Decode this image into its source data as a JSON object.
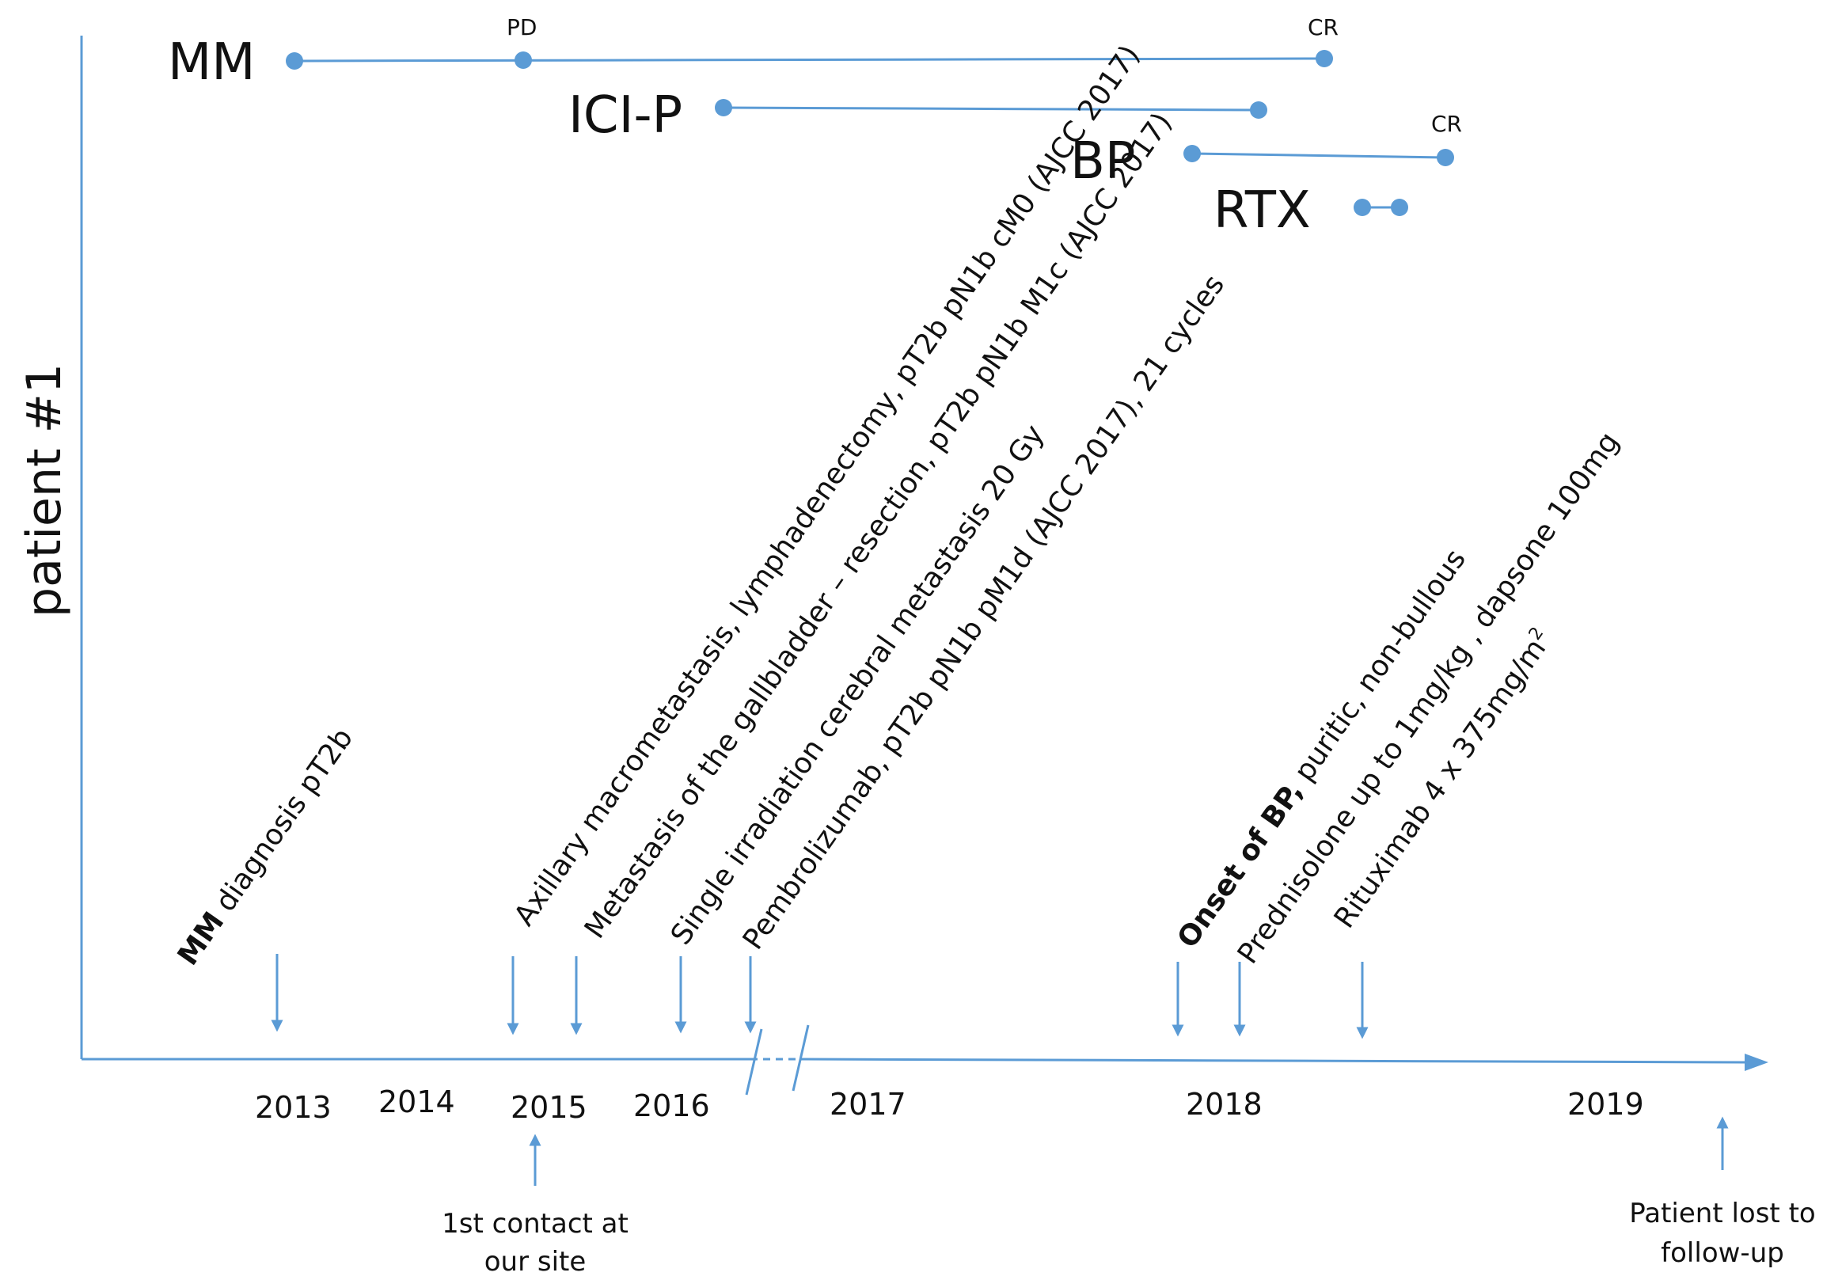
{
  "colors": {
    "accent": "#5b9bd5",
    "text": "#111111"
  },
  "y_axis_label": "patient #1",
  "years": [
    "2013",
    "2014",
    "2015",
    "2016",
    "2017",
    "2018",
    "2019"
  ],
  "tracks": {
    "mm": {
      "label": "MM",
      "status_pd": "PD",
      "status_cr": "CR"
    },
    "icip": {
      "label": "ICI-P"
    },
    "bp": {
      "label": "BP",
      "status_cr": "CR"
    },
    "rtx": {
      "label": "RTX"
    }
  },
  "events": {
    "mm_diagnosis": {
      "bold": "MM",
      "rest": " diagnosis  pT2b"
    },
    "axillary": "Axillary macrometastasis, lymphadenectomy,  pT2b pN1b cM0 (AJCC 2017)",
    "gallbladder": "Metastasis of the gallbladder – resection, pT2b pN1b M1c (AJCC 2017)",
    "irradiation": "Single irradiation cerebral metastasis 20 Gy",
    "pembrolizumab": "Pembrolizumab, pT2b pN1b pM1d (AJCC 2017), 21 cycles",
    "onset_bp": {
      "bold": "Onset of BP,",
      "rest": " puritic, non-bullous"
    },
    "prednisolone": "Prednisolone  up to 1mg/kg , dapsone 100mg",
    "rituximab": {
      "text": "Rituximab 4 x 375mg/m",
      "sup": "2"
    }
  },
  "notes": {
    "first_contact": {
      "line1": "1st contact at",
      "line2": "our site"
    },
    "lost": {
      "line1": "Patient lost to",
      "line2": "follow-up"
    }
  }
}
